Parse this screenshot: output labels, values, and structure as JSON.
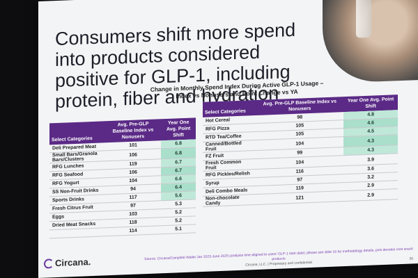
{
  "slide": {
    "headline": "Consumers shift more spend into products considered positive for GLP-1, including protein, fiber and hydration",
    "subtitle_line1": "Change in Monthly Spend Index During Active GLP-1 Usage –",
    "subtitle_line2": "Index vs Nonusers and Point Change vs YA",
    "brand": "Circana.",
    "footnote_line1": "Source: Circana/Complete Wallet Jan 2023-June 2025 (analysis time-aligned to users' GLP-1 start date); please see slide 16 for methodology details; pink denotes core snack products",
    "footnote_line2": "Circana, LLC. | Proprietary and confidential",
    "page_number": "26"
  },
  "left_table": {
    "headers": [
      "Select Categories",
      "Avg. Pre-GLP Baseline Index vs Nonusers",
      "Year One Avg. Point Shift"
    ],
    "rows": [
      {
        "cat": "Deli Prepared Meat",
        "idx": "101",
        "shift": "6.8"
      },
      {
        "cat": "Small Bars/Granola Bars/Clusters",
        "idx": "106",
        "shift": "6.8"
      },
      {
        "cat": "RFG Lunches",
        "idx": "119",
        "shift": "6.7"
      },
      {
        "cat": "RFG Seafood",
        "idx": "106",
        "shift": "6.7"
      },
      {
        "cat": "RFG Yogurt",
        "idx": "104",
        "shift": "6.6"
      },
      {
        "cat": "SS Non-Fruit Drinks",
        "idx": "94",
        "shift": "6.4"
      },
      {
        "cat": "Sports Drinks",
        "idx": "117",
        "shift": "5.6"
      },
      {
        "cat": "Fresh Citrus Fruit",
        "idx": "97",
        "shift": "5.3"
      },
      {
        "cat": "Eggs",
        "idx": "103",
        "shift": "5.2"
      },
      {
        "cat": "Dried Meat Snacks",
        "idx": "118",
        "shift": "5.2"
      },
      {
        "cat": "",
        "idx": "114",
        "shift": "5.1"
      }
    ]
  },
  "right_table": {
    "headers": [
      "Select Categories",
      "Avg. Pre-GLP Baseline Index vs Nonusers",
      "Year One Avg. Point Shift"
    ],
    "rows": [
      {
        "cat": "Hot Cereal",
        "idx": "98",
        "shift": "4.8",
        "hl": true
      },
      {
        "cat": "RFG Pizza",
        "idx": "105",
        "shift": "4.6",
        "hl": true
      },
      {
        "cat": "RTD Tea/Coffee",
        "idx": "105",
        "shift": "4.5",
        "hl": true
      },
      {
        "cat": "Canned/Bottled Fruit",
        "idx": "104",
        "shift": "4.3",
        "hl": true
      },
      {
        "cat": "FZ Fruit",
        "idx": "99",
        "shift": "4.3",
        "hl": true
      },
      {
        "cat": "Fresh Common Fruit",
        "idx": "104",
        "shift": "3.9",
        "hl": false
      },
      {
        "cat": "RFG Pickles/Relish",
        "idx": "116",
        "shift": "3.6",
        "hl": false
      },
      {
        "cat": "Syrup",
        "idx": "97",
        "shift": "3.2",
        "hl": false
      },
      {
        "cat": "Deli Combo Meals",
        "idx": "119",
        "shift": "2.9",
        "hl": false
      },
      {
        "cat": "Non-chocolate Candy",
        "idx": "121",
        "shift": "2.9",
        "hl": false
      }
    ]
  },
  "colors": {
    "header_purple": "#5b2a86",
    "shift_green": "#bfe8d9"
  }
}
